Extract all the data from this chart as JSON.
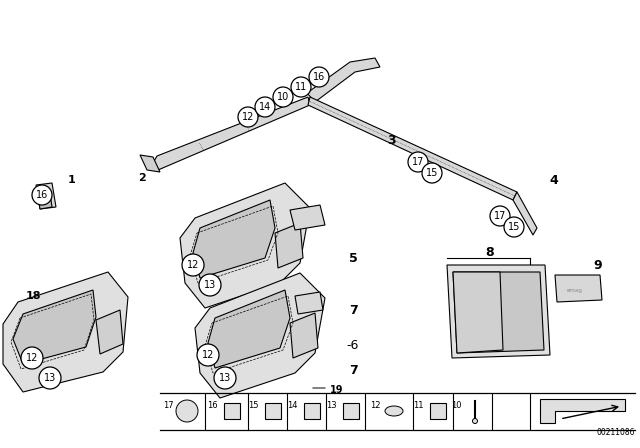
{
  "bg_color": "#ffffff",
  "diagram_number": "00211086",
  "bubble_color": "#ffffff",
  "bubble_edge": "#000000",
  "lc": "#000000",
  "fc_strip": "#d8d8d8",
  "fc_part": "#e8e8e8",
  "fc_hole": "#c0c0c0"
}
